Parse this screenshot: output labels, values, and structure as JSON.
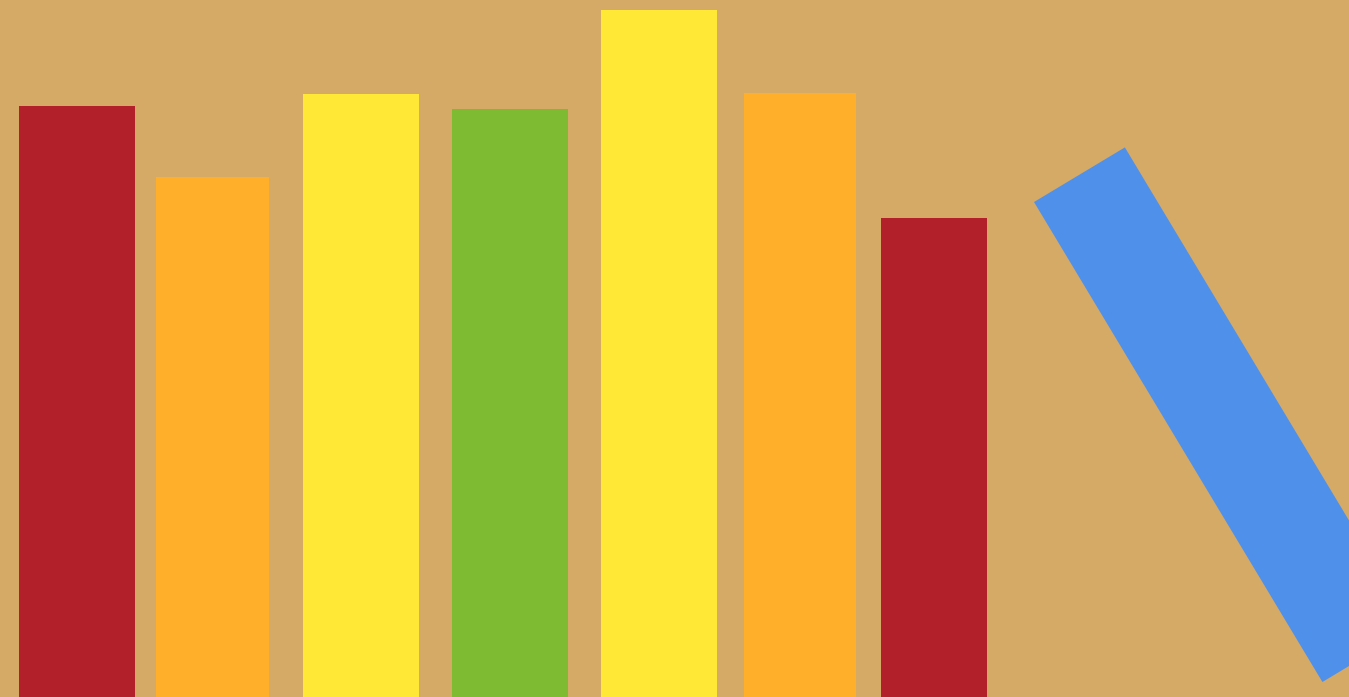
{
  "scene": {
    "background_color": "#D4AA66",
    "books": [
      {
        "name": "book-red-1",
        "color": "#B22029",
        "tilted": false
      },
      {
        "name": "book-orange-1",
        "color": "#FFAF29",
        "tilted": false
      },
      {
        "name": "book-yellow-1",
        "color": "#FFE936",
        "tilted": false
      },
      {
        "name": "book-green",
        "color": "#7FBA33",
        "tilted": false
      },
      {
        "name": "book-yellow-2",
        "color": "#FFE936",
        "tilted": false
      },
      {
        "name": "book-orange-2",
        "color": "#FFAF29",
        "tilted": false
      },
      {
        "name": "book-red-2",
        "color": "#B22029",
        "tilted": false
      },
      {
        "name": "book-blue-leaning",
        "color": "#4F90EB",
        "tilted": true
      }
    ]
  }
}
